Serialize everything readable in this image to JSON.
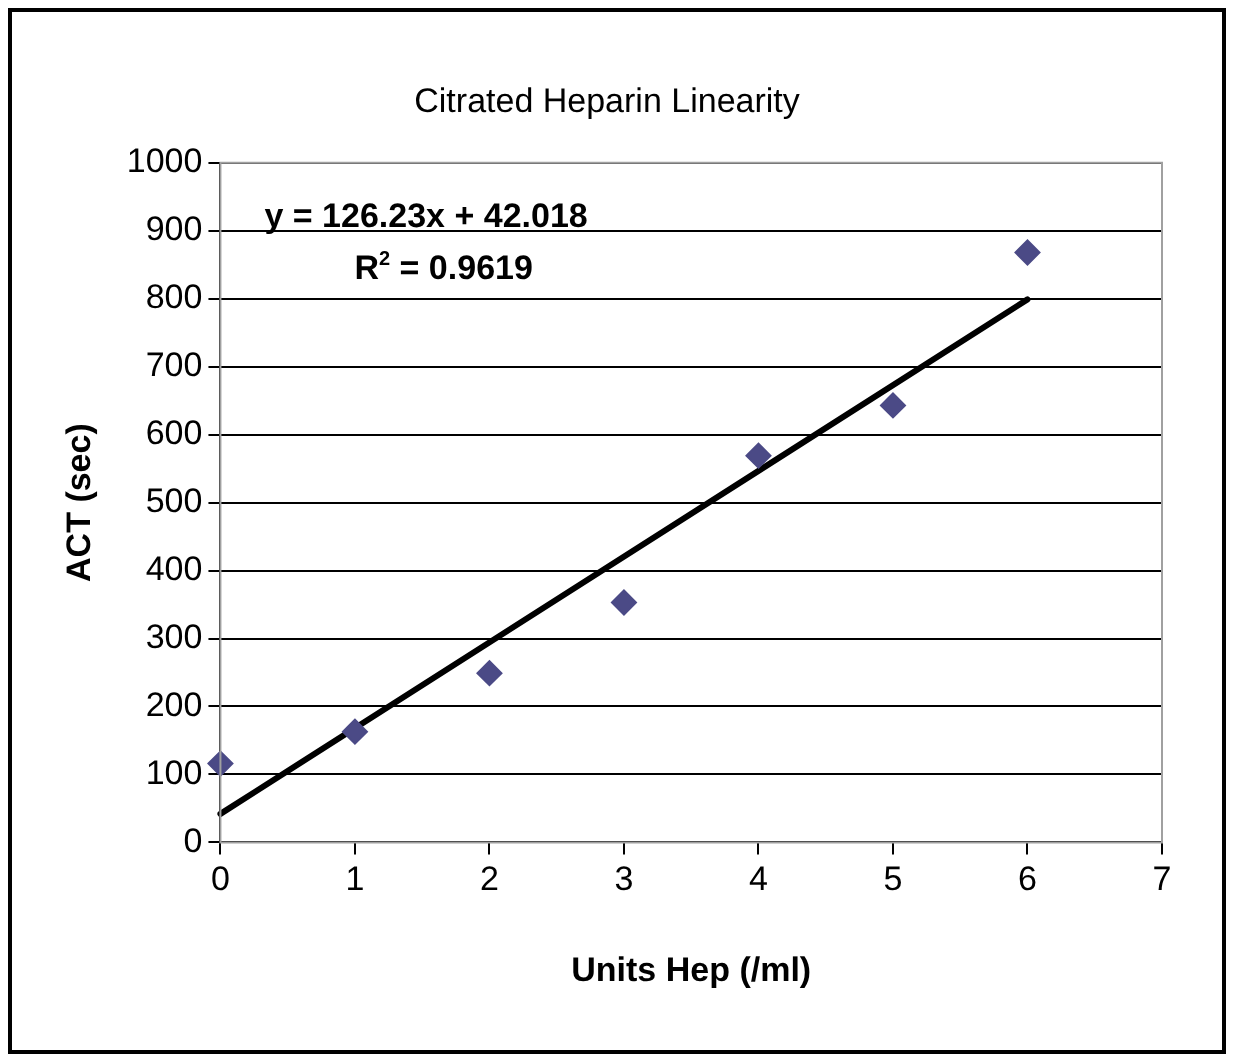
{
  "chart_data": {
    "type": "scatter",
    "title": "Citrated Heparin Linearity",
    "xlabel": "Units Hep (/ml)",
    "ylabel": "ACT (sec)",
    "series": [
      {
        "type": "scatter",
        "color": "#4b4a86",
        "x": [
          0,
          1,
          2,
          3,
          4,
          5,
          6
        ],
        "values": [
          116,
          163,
          249,
          353,
          569,
          643,
          868
        ],
        "marker": "diamond"
      },
      {
        "type": "line",
        "color": "#000000",
        "x": [
          0,
          6
        ],
        "values": [
          42,
          799
        ],
        "marker": "none"
      }
    ],
    "annotations": [
      "y = 126.23x + 42.018",
      "R$^{2}$ = 0.9619"
    ],
    "xlim": [
      0,
      7
    ],
    "xticks": [
      0,
      1,
      2,
      3,
      4,
      5,
      6,
      7
    ],
    "ylim": [
      0,
      1000
    ],
    "yticks": [
      0,
      100,
      200,
      300,
      400,
      500,
      600,
      700,
      800,
      900,
      1000
    ],
    "grid": "y",
    "legend": false
  }
}
